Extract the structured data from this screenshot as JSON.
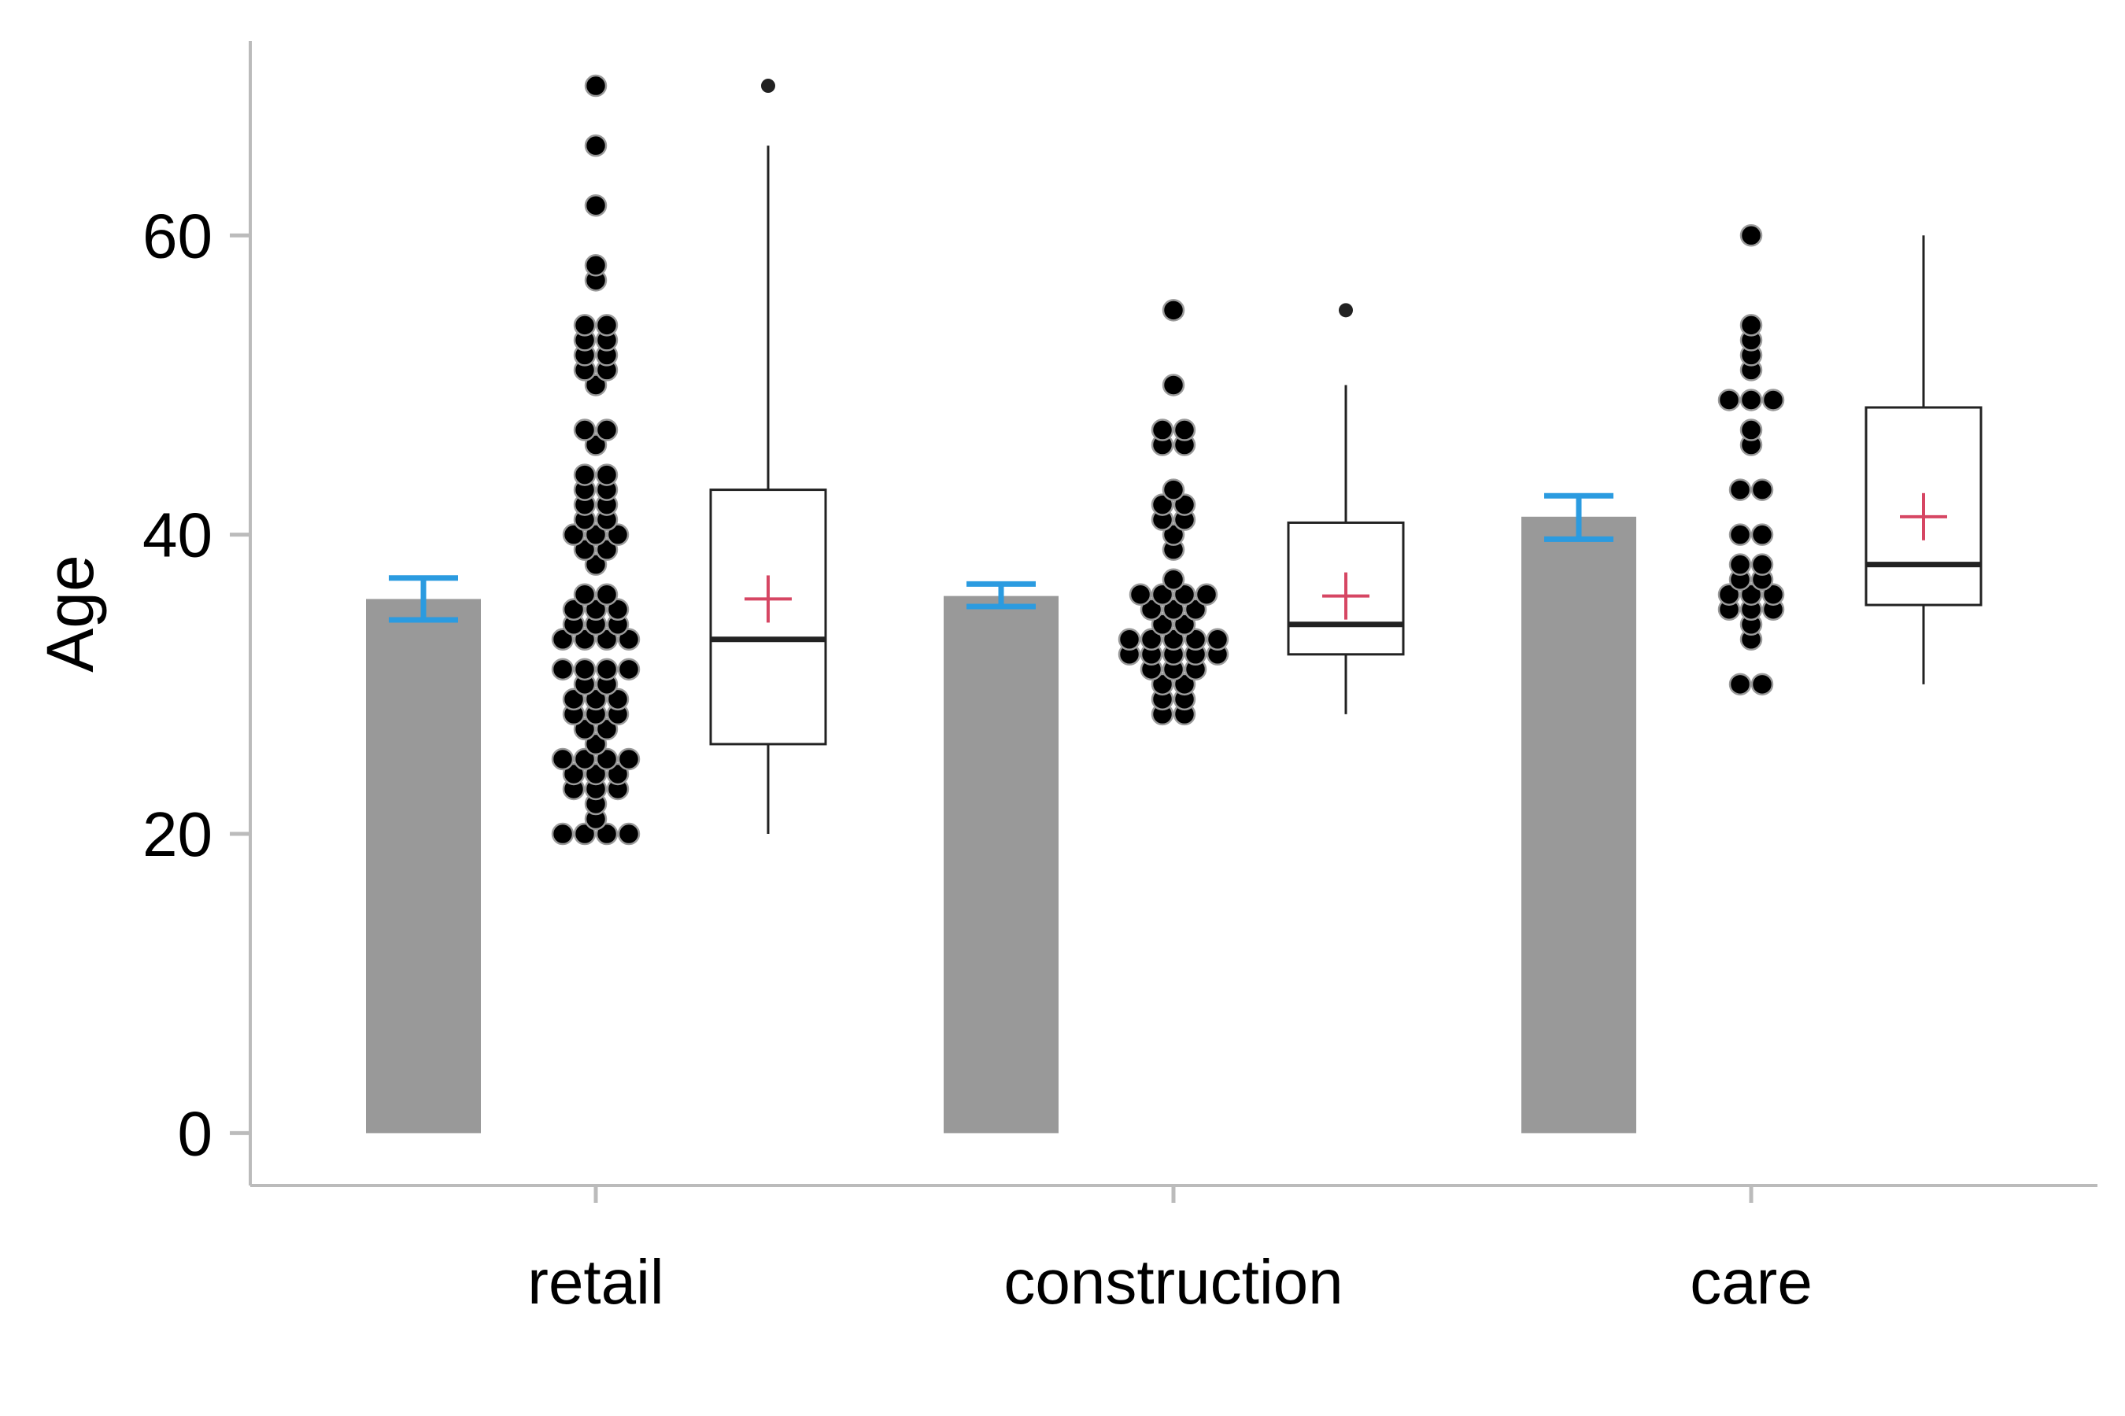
{
  "chart_data": {
    "type": "bar",
    "ylabel": "Age",
    "xlabel": "",
    "ylim": [
      -3.5,
      73
    ],
    "yticks": [
      0,
      20,
      40,
      60
    ],
    "grid": false,
    "categories": [
      "retail",
      "construction",
      "care"
    ],
    "groups": [
      {
        "category": "retail",
        "mean": 35.7,
        "ci": [
          34.3,
          37.1
        ],
        "box": {
          "q1": 26,
          "median": 33,
          "q3": 43,
          "whisker_low": 20,
          "whisker_high": 66,
          "mean": 35.7,
          "outliers": [
            70
          ]
        },
        "points": [
          70,
          66,
          62,
          58,
          57,
          54,
          54,
          53,
          53,
          52,
          52,
          51,
          51,
          50,
          47,
          47,
          46,
          44,
          44,
          43,
          43,
          42,
          42,
          41,
          41,
          40,
          40,
          40,
          39,
          39,
          38,
          36,
          36,
          35,
          35,
          35,
          34,
          34,
          34,
          33,
          33,
          33,
          33,
          31,
          31,
          31,
          31,
          30,
          30,
          29,
          29,
          29,
          28,
          28,
          28,
          27,
          27,
          26,
          25,
          25,
          25,
          25,
          24,
          24,
          24,
          23,
          23,
          23,
          22,
          21,
          20,
          20,
          20,
          20
        ]
      },
      {
        "category": "construction",
        "mean": 35.9,
        "ci": [
          35.2,
          36.7
        ],
        "box": {
          "q1": 32,
          "median": 34,
          "q3": 40.8,
          "whisker_low": 28,
          "whisker_high": 50,
          "mean": 35.9,
          "outliers": [
            55
          ]
        },
        "points": [
          55,
          50,
          47,
          47,
          46,
          46,
          43,
          42,
          42,
          41,
          41,
          40,
          39,
          37,
          36,
          36,
          36,
          36,
          35,
          35,
          35,
          34,
          34,
          33,
          33,
          33,
          33,
          33,
          32,
          32,
          32,
          32,
          32,
          31,
          31,
          31,
          30,
          30,
          29,
          29,
          28,
          28
        ]
      },
      {
        "category": "care",
        "mean": 41.2,
        "ci": [
          39.7,
          42.6
        ],
        "box": {
          "q1": 35.3,
          "median": 38,
          "q3": 48.5,
          "whisker_low": 30,
          "whisker_high": 60,
          "mean": 41.2,
          "outliers": []
        },
        "points": [
          60,
          54,
          53,
          52,
          51,
          49,
          49,
          49,
          47,
          46,
          43,
          43,
          40,
          40,
          38,
          38,
          37,
          37,
          36,
          36,
          36,
          35,
          35,
          35,
          34,
          33,
          30,
          30
        ]
      }
    ],
    "colors": {
      "bar": "#999999",
      "error_bar": "#2b9be0",
      "point_fill": "#000000",
      "point_stroke": "#9a9a9a",
      "box_stroke": "#222222",
      "mean_marker": "#d64663",
      "axis": "#bbbbbb"
    }
  }
}
